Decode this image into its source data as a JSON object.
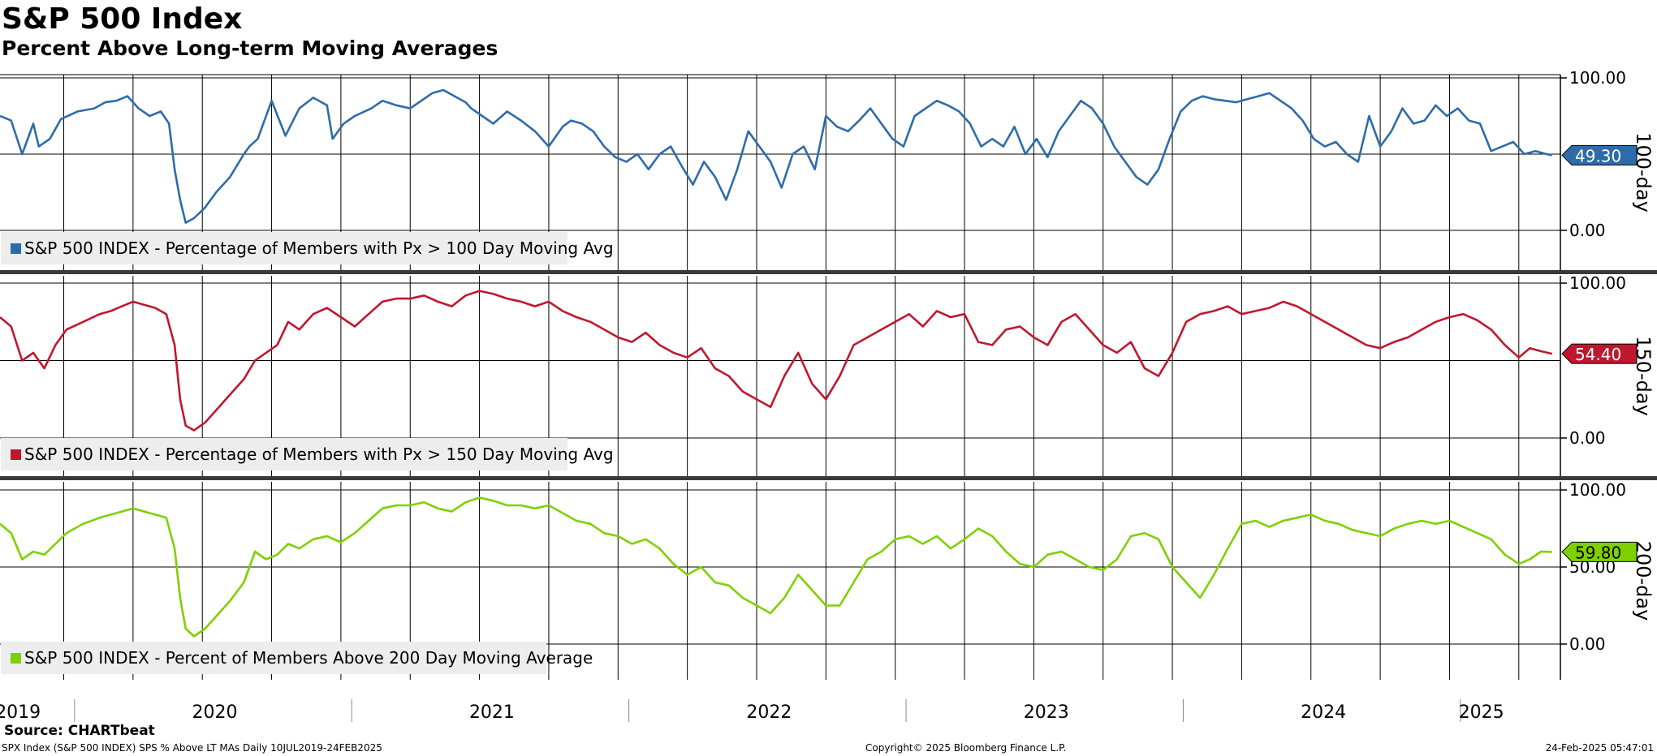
{
  "header": {
    "title": "S&P 500 Index",
    "subtitle": "Percent Above Long-term Moving Averages"
  },
  "footer": {
    "source": "Source: CHARTbeat",
    "left": "SPX Index (S&P 500 INDEX) SPS % Above LT MAs  Daily 10JUL2019-24FEB2025",
    "center": "Copyright© 2025 Bloomberg Finance L.P.",
    "right": "24-Feb-2025 05:47:01"
  },
  "colors": {
    "series_100": "#2e6ca9",
    "series_150": "#c0172f",
    "series_200": "#7fd000"
  },
  "chart_data": [
    {
      "type": "line",
      "panel_label": "100-day",
      "ylim": [
        0,
        100
      ],
      "yticks": [
        0,
        100
      ],
      "ytick_labels": [
        "0.00",
        "100.00"
      ],
      "grid": true,
      "legend_position": "bottom-left",
      "x_range": [
        2019.52,
        2025.15
      ],
      "last_value_label": "49.30",
      "series": [
        {
          "name": "S&P 500 INDEX - Percentage of Members with Px > 100 Day Moving Avg",
          "x": [
            2019.52,
            2019.56,
            2019.6,
            2019.64,
            2019.66,
            2019.7,
            2019.74,
            2019.8,
            2019.86,
            2019.9,
            2019.94,
            2019.98,
            2020.02,
            2020.06,
            2020.1,
            2020.13,
            2020.15,
            2020.17,
            2020.19,
            2020.22,
            2020.26,
            2020.3,
            2020.35,
            2020.4,
            2020.42,
            2020.45,
            2020.5,
            2020.55,
            2020.6,
            2020.65,
            2020.7,
            2020.72,
            2020.76,
            2020.8,
            2020.86,
            2020.9,
            2020.95,
            2021.0,
            2021.04,
            2021.08,
            2021.12,
            2021.16,
            2021.2,
            2021.22,
            2021.26,
            2021.3,
            2021.35,
            2021.4,
            2021.45,
            2021.5,
            2021.55,
            2021.58,
            2021.62,
            2021.66,
            2021.7,
            2021.74,
            2021.78,
            2021.82,
            2021.86,
            2021.9,
            2021.94,
            2021.98,
            2022.02,
            2022.06,
            2022.1,
            2022.14,
            2022.18,
            2022.22,
            2022.26,
            2022.3,
            2022.34,
            2022.38,
            2022.42,
            2022.46,
            2022.5,
            2022.54,
            2022.58,
            2022.62,
            2022.66,
            2022.7,
            2022.74,
            2022.78,
            2022.82,
            2022.86,
            2022.9,
            2022.94,
            2022.98,
            2023.02,
            2023.06,
            2023.1,
            2023.14,
            2023.18,
            2023.22,
            2023.26,
            2023.3,
            2023.34,
            2023.38,
            2023.42,
            2023.46,
            2023.5,
            2023.54,
            2023.58,
            2023.62,
            2023.66,
            2023.7,
            2023.74,
            2023.78,
            2023.82,
            2023.86,
            2023.9,
            2023.94,
            2023.98,
            2024.02,
            2024.06,
            2024.1,
            2024.14,
            2024.18,
            2024.22,
            2024.26,
            2024.3,
            2024.34,
            2024.38,
            2024.42,
            2024.46,
            2024.5,
            2024.54,
            2024.58,
            2024.62,
            2024.66,
            2024.7,
            2024.74,
            2024.78,
            2024.82,
            2024.86,
            2024.9,
            2024.94,
            2024.98,
            2025.02,
            2025.06,
            2025.1,
            2025.12
          ],
          "y": [
            75,
            72,
            50,
            70,
            55,
            60,
            73,
            78,
            80,
            84,
            85,
            88,
            80,
            75,
            78,
            70,
            40,
            20,
            5,
            8,
            15,
            25,
            35,
            50,
            55,
            60,
            85,
            62,
            80,
            87,
            82,
            60,
            70,
            75,
            80,
            85,
            82,
            80,
            85,
            90,
            92,
            88,
            84,
            80,
            75,
            70,
            78,
            72,
            65,
            55,
            68,
            72,
            70,
            65,
            55,
            48,
            45,
            50,
            40,
            50,
            55,
            42,
            30,
            45,
            35,
            20,
            40,
            65,
            55,
            45,
            28,
            50,
            55,
            40,
            75,
            68,
            65,
            72,
            80,
            70,
            60,
            55,
            75,
            80,
            85,
            82,
            78,
            70,
            55,
            60,
            55,
            68,
            50,
            60,
            48,
            65,
            75,
            85,
            80,
            70,
            55,
            45,
            35,
            30,
            40,
            60,
            78,
            85,
            88,
            86,
            85,
            84,
            86,
            88,
            90,
            85,
            80,
            72,
            60,
            55,
            58,
            50,
            45,
            75,
            55,
            65,
            80,
            70,
            72,
            82,
            75,
            80,
            72,
            70,
            52,
            55,
            58,
            50,
            52,
            50,
            49.3
          ]
        }
      ]
    },
    {
      "type": "line",
      "panel_label": "150-day",
      "ylim": [
        0,
        100
      ],
      "yticks": [
        0,
        100
      ],
      "ytick_labels": [
        "0.00",
        "100.00"
      ],
      "grid": true,
      "legend_position": "bottom-left",
      "x_range": [
        2019.52,
        2025.15
      ],
      "last_value_label": "54.40",
      "series": [
        {
          "name": "S&P 500 INDEX - Percentage of Members with Px > 150 Day Moving Avg",
          "x": [
            2019.52,
            2019.56,
            2019.6,
            2019.64,
            2019.68,
            2019.72,
            2019.76,
            2019.82,
            2019.88,
            2019.92,
            2019.96,
            2020.0,
            2020.04,
            2020.08,
            2020.12,
            2020.15,
            2020.17,
            2020.19,
            2020.22,
            2020.26,
            2020.3,
            2020.35,
            2020.4,
            2020.44,
            2020.48,
            2020.52,
            2020.56,
            2020.6,
            2020.65,
            2020.7,
            2020.75,
            2020.8,
            2020.85,
            2020.9,
            2020.95,
            2021.0,
            2021.05,
            2021.1,
            2021.15,
            2021.2,
            2021.25,
            2021.3,
            2021.35,
            2021.4,
            2021.45,
            2021.5,
            2021.55,
            2021.6,
            2021.65,
            2021.7,
            2021.75,
            2021.8,
            2021.85,
            2021.9,
            2021.95,
            2022.0,
            2022.05,
            2022.1,
            2022.15,
            2022.2,
            2022.25,
            2022.3,
            2022.35,
            2022.4,
            2022.45,
            2022.5,
            2022.55,
            2022.6,
            2022.65,
            2022.7,
            2022.75,
            2022.8,
            2022.85,
            2022.9,
            2022.95,
            2023.0,
            2023.05,
            2023.1,
            2023.15,
            2023.2,
            2023.25,
            2023.3,
            2023.35,
            2023.4,
            2023.45,
            2023.5,
            2023.55,
            2023.6,
            2023.65,
            2023.7,
            2023.75,
            2023.8,
            2023.85,
            2023.9,
            2023.95,
            2024.0,
            2024.05,
            2024.1,
            2024.15,
            2024.2,
            2024.25,
            2024.3,
            2024.35,
            2024.4,
            2024.45,
            2024.5,
            2024.55,
            2024.6,
            2024.65,
            2024.7,
            2024.75,
            2024.8,
            2024.85,
            2024.9,
            2024.95,
            2025.0,
            2025.04,
            2025.08,
            2025.12
          ],
          "y": [
            78,
            72,
            50,
            55,
            45,
            60,
            70,
            75,
            80,
            82,
            85,
            88,
            86,
            84,
            80,
            60,
            25,
            8,
            5,
            10,
            18,
            28,
            38,
            50,
            55,
            60,
            75,
            70,
            80,
            84,
            78,
            72,
            80,
            88,
            90,
            90,
            92,
            88,
            85,
            92,
            95,
            93,
            90,
            88,
            85,
            88,
            82,
            78,
            75,
            70,
            65,
            62,
            68,
            60,
            55,
            52,
            58,
            45,
            40,
            30,
            25,
            20,
            40,
            55,
            35,
            25,
            40,
            60,
            65,
            70,
            75,
            80,
            72,
            82,
            78,
            80,
            62,
            60,
            70,
            72,
            65,
            60,
            75,
            80,
            70,
            60,
            55,
            62,
            45,
            40,
            55,
            75,
            80,
            82,
            85,
            80,
            82,
            84,
            88,
            85,
            80,
            75,
            70,
            65,
            60,
            58,
            62,
            65,
            70,
            75,
            78,
            80,
            76,
            70,
            60,
            52,
            58,
            56,
            54.4
          ]
        }
      ]
    },
    {
      "type": "line",
      "panel_label": "200-day",
      "ylim": [
        0,
        100
      ],
      "yticks": [
        0,
        50,
        100
      ],
      "ytick_labels": [
        "0.00",
        "50.00",
        "100.00"
      ],
      "grid": true,
      "legend_position": "bottom-left",
      "x_range": [
        2019.52,
        2025.15
      ],
      "last_value_label": "59.80",
      "series": [
        {
          "name": "S&P 500 INDEX - Percent of Members Above 200 Day Moving Average",
          "x": [
            2019.52,
            2019.56,
            2019.6,
            2019.64,
            2019.68,
            2019.72,
            2019.76,
            2019.82,
            2019.88,
            2019.92,
            2019.96,
            2020.0,
            2020.04,
            2020.08,
            2020.12,
            2020.15,
            2020.17,
            2020.19,
            2020.22,
            2020.26,
            2020.3,
            2020.35,
            2020.4,
            2020.44,
            2020.48,
            2020.52,
            2020.56,
            2020.6,
            2020.65,
            2020.7,
            2020.75,
            2020.8,
            2020.85,
            2020.9,
            2020.95,
            2021.0,
            2021.05,
            2021.1,
            2021.15,
            2021.2,
            2021.25,
            2021.3,
            2021.35,
            2021.4,
            2021.45,
            2021.5,
            2021.55,
            2021.6,
            2021.65,
            2021.7,
            2021.75,
            2021.8,
            2021.85,
            2021.9,
            2021.95,
            2022.0,
            2022.05,
            2022.1,
            2022.15,
            2022.2,
            2022.25,
            2022.3,
            2022.35,
            2022.4,
            2022.45,
            2022.5,
            2022.55,
            2022.6,
            2022.65,
            2022.7,
            2022.75,
            2022.8,
            2022.85,
            2022.9,
            2022.95,
            2023.0,
            2023.05,
            2023.1,
            2023.15,
            2023.2,
            2023.25,
            2023.3,
            2023.35,
            2023.4,
            2023.45,
            2023.5,
            2023.55,
            2023.6,
            2023.65,
            2023.7,
            2023.75,
            2023.8,
            2023.85,
            2023.9,
            2023.95,
            2024.0,
            2024.05,
            2024.1,
            2024.15,
            2024.2,
            2024.25,
            2024.3,
            2024.35,
            2024.4,
            2024.45,
            2024.5,
            2024.55,
            2024.6,
            2024.65,
            2024.7,
            2024.75,
            2024.8,
            2024.85,
            2024.9,
            2024.95,
            2025.0,
            2025.04,
            2025.08,
            2025.12
          ],
          "y": [
            78,
            72,
            55,
            60,
            58,
            65,
            72,
            78,
            82,
            84,
            86,
            88,
            86,
            84,
            82,
            62,
            30,
            10,
            5,
            10,
            18,
            28,
            40,
            60,
            55,
            58,
            65,
            62,
            68,
            70,
            66,
            72,
            80,
            88,
            90,
            90,
            92,
            88,
            86,
            92,
            95,
            93,
            90,
            90,
            88,
            90,
            85,
            80,
            78,
            72,
            70,
            65,
            68,
            62,
            52,
            45,
            50,
            40,
            38,
            30,
            25,
            20,
            30,
            45,
            35,
            25,
            25,
            40,
            55,
            60,
            68,
            70,
            65,
            70,
            62,
            68,
            75,
            70,
            60,
            52,
            50,
            58,
            60,
            55,
            50,
            48,
            55,
            70,
            72,
            68,
            50,
            40,
            30,
            45,
            62,
            78,
            80,
            76,
            80,
            82,
            84,
            80,
            78,
            74,
            72,
            70,
            75,
            78,
            80,
            78,
            80,
            76,
            72,
            68,
            58,
            52,
            55,
            60,
            59.8
          ]
        }
      ]
    }
  ],
  "x_axis": {
    "year_labels": [
      {
        "label": "2019",
        "x": 2019.79
      },
      {
        "label": "2020",
        "x": 2020.5
      },
      {
        "label": "2021",
        "x": 2021.5
      },
      {
        "label": "2022",
        "x": 2022.5
      },
      {
        "label": "2023",
        "x": 2023.5
      },
      {
        "label": "2024",
        "x": 2024.5
      },
      {
        "label": "2025",
        "x": 2025.07
      }
    ],
    "boundaries": [
      2020.0,
      2021.0,
      2022.0,
      2023.0,
      2024.0,
      2025.0
    ]
  }
}
